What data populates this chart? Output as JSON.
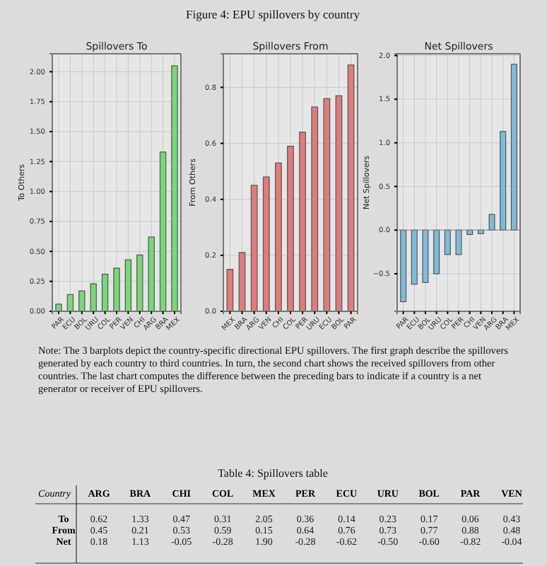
{
  "chart_data": [
    {
      "type": "bar",
      "title": "Spillovers To",
      "ylabel": "To Others",
      "annotations": [
        "Figure 4: EPU spillovers by country",
        "Note: The 3 barplots depict the country-specific directional EPU spillovers. The first graph describe the spillovers generated by each country to third countries. In turn, the second chart shows the received spillovers from other countries. The last chart computes the difference between the preceding bars to indicate if a country is a net generator or receiver of EPU spillovers."
      ],
      "categories": [
        "PAR",
        "ECU",
        "BOL",
        "URU",
        "COL",
        "PER",
        "VEN",
        "CHI",
        "ARG",
        "BRA",
        "MEX"
      ],
      "values": [
        0.06,
        0.14,
        0.17,
        0.23,
        0.31,
        0.36,
        0.43,
        0.47,
        0.62,
        1.33,
        2.05
      ],
      "color": "#77d877",
      "ylim": [
        0,
        2.15
      ],
      "yticks": [
        {
          "value": 0,
          "label": "0.00"
        },
        {
          "value": 0.25,
          "label": "0.25"
        },
        {
          "value": 0.5,
          "label": "0.50"
        },
        {
          "value": 0.75,
          "label": "0.75"
        },
        {
          "value": 1,
          "label": "1.00"
        },
        {
          "value": 1.25,
          "label": "1.25"
        },
        {
          "value": 1.5,
          "label": "1.50"
        },
        {
          "value": 1.75,
          "label": "1.75"
        },
        {
          "value": 2,
          "label": "2.00"
        }
      ],
      "grid": true
    },
    {
      "type": "bar",
      "title": "Spillovers From",
      "ylabel": "From Others",
      "categories": [
        "MEX",
        "BRA",
        "ARG",
        "VEN",
        "CHI",
        "COL",
        "PER",
        "URU",
        "ECU",
        "BOL",
        "PAR"
      ],
      "values": [
        0.15,
        0.21,
        0.45,
        0.48,
        0.53,
        0.59,
        0.64,
        0.73,
        0.76,
        0.77,
        0.88
      ],
      "color": "#e07b7b",
      "ylim": [
        0,
        0.92
      ],
      "yticks": [
        {
          "value": 0,
          "label": "0.0"
        },
        {
          "value": 0.2,
          "label": "0.2"
        },
        {
          "value": 0.4,
          "label": "0.4"
        },
        {
          "value": 0.6,
          "label": "0.6"
        },
        {
          "value": 0.8,
          "label": "0.8"
        }
      ],
      "grid": true
    },
    {
      "type": "bar",
      "title": "Net Spillovers",
      "ylabel": "Net Spillovers",
      "categories": [
        "PAR",
        "ECU",
        "BOL",
        "URU",
        "COL",
        "PER",
        "CHI",
        "VEN",
        "ARG",
        "BRA",
        "MEX"
      ],
      "values": [
        -0.82,
        -0.62,
        -0.6,
        -0.5,
        -0.28,
        -0.28,
        -0.05,
        -0.04,
        0.18,
        1.13,
        1.9
      ],
      "color": "#7dbcd8",
      "ylim": [
        -0.93,
        2.02
      ],
      "yticks": [
        {
          "value": -0.5,
          "label": "−0.5"
        },
        {
          "value": 0,
          "label": "0.0"
        },
        {
          "value": 0.5,
          "label": "0.5"
        },
        {
          "value": 1,
          "label": "1.0"
        },
        {
          "value": 1.5,
          "label": "1.5"
        },
        {
          "value": 2,
          "label": "2.0"
        }
      ],
      "grid": true
    },
    {
      "type": "other",
      "title": "Table 4: Spillovers table",
      "xlabel": "Country",
      "categories": [
        "ARG",
        "BRA",
        "CHI",
        "COL",
        "MEX",
        "PER",
        "ECU",
        "URU",
        "BOL",
        "PAR",
        "VEN"
      ],
      "y_categories": [
        "To",
        "From",
        "Net"
      ],
      "cell_labels": [
        [
          "0.62",
          "1.33",
          "0.47",
          "0.31",
          "2.05",
          "0.36",
          "0.14",
          "0.23",
          "0.17",
          "0.06",
          "0.43"
        ],
        [
          "0.45",
          "0.21",
          "0.53",
          "0.59",
          "0.15",
          "0.64",
          "0.76",
          "0.73",
          "0.77",
          "0.88",
          "0.48"
        ],
        [
          "0.18",
          "1.13",
          "-0.05",
          "-0.28",
          "1.90",
          "-0.28",
          "-0.62",
          "-0.50",
          "-0.60",
          "-0.82",
          "-0.04"
        ]
      ]
    }
  ]
}
